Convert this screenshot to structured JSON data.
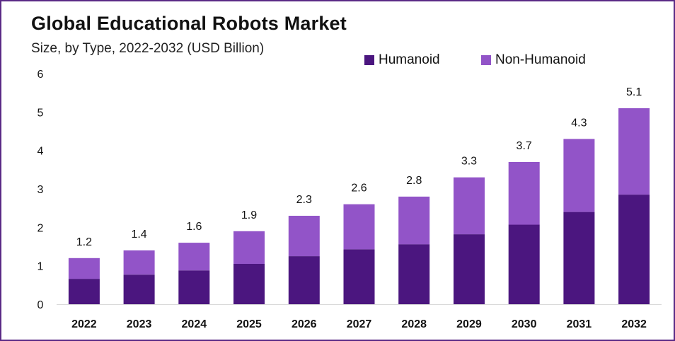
{
  "title": "Global Educational Robots Market",
  "subtitle": "Size, by Type, 2022-2032 (USD Billion)",
  "chart_data": {
    "type": "bar",
    "stacked": true,
    "title": "Global Educational Robots Market",
    "subtitle": "Size, by Type, 2022-2032 (USD Billion)",
    "xlabel": "",
    "ylabel": "",
    "categories": [
      "2022",
      "2023",
      "2024",
      "2025",
      "2026",
      "2027",
      "2028",
      "2029",
      "2030",
      "2031",
      "2032"
    ],
    "series": [
      {
        "name": "Humanoid",
        "color": "#4b167f",
        "values": [
          0.66,
          0.77,
          0.88,
          1.05,
          1.25,
          1.43,
          1.56,
          1.82,
          2.07,
          2.4,
          2.85
        ]
      },
      {
        "name": "Non-Humanoid",
        "color": "#9254c8",
        "values": [
          0.54,
          0.63,
          0.72,
          0.85,
          1.05,
          1.17,
          1.24,
          1.48,
          1.63,
          1.9,
          2.25
        ]
      }
    ],
    "totals": [
      "1.2",
      "1.4",
      "1.6",
      "1.9",
      "2.3",
      "2.6",
      "2.8",
      "3.3",
      "3.7",
      "4.3",
      "5.1"
    ],
    "yticks": [
      "0",
      "1",
      "2",
      "3",
      "4",
      "5",
      "6"
    ],
    "ylim": [
      0,
      6
    ],
    "grid": false,
    "legend_position": "top-right"
  }
}
